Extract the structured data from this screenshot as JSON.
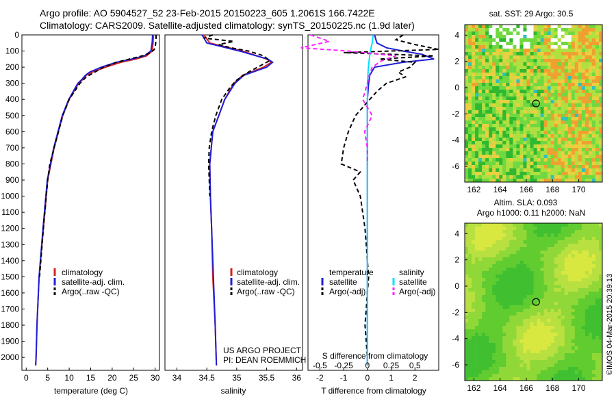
{
  "header": {
    "title_line1": "Argo profile: AO 5904527_52 23-Feb-2015 20150223_605 1.2061S 166.7422E",
    "title_line2": "Climatology: CARS2009. Satellite-adjusted climatology: synTS_20150225.nc (1.9d later)"
  },
  "colors": {
    "climatology": "#d62020",
    "satellite": "#1f1fd8",
    "argo": "#000000",
    "salinity_sat": "#00e0ff",
    "salinity_argo": "#ff22ff"
  },
  "chart_data": [
    {
      "type": "line",
      "panel": "temperature",
      "xlabel": "temperature (deg C)",
      "ylabel": "",
      "xlim": [
        -1,
        31
      ],
      "ylim": [
        2080,
        0
      ],
      "xticks": [
        0,
        5,
        10,
        15,
        20,
        25,
        30
      ],
      "yticks": [
        0,
        100,
        200,
        300,
        400,
        500,
        600,
        700,
        800,
        900,
        1000,
        1100,
        1200,
        1300,
        1400,
        1500,
        1600,
        1700,
        1800,
        1900,
        2000
      ],
      "legend": [
        "climatology",
        "satellite-adj. clim.",
        "Argo(..raw -QC)"
      ],
      "legend_placement": "lower-middle",
      "series": [
        {
          "name": "climatology",
          "depth": [
            0,
            50,
            100,
            130,
            150,
            170,
            200,
            230,
            250,
            280,
            300,
            400,
            500,
            700,
            900,
            1200,
            1500,
            1800,
            2000,
            2050
          ],
          "values": [
            29.6,
            29.5,
            29.3,
            28.0,
            25.5,
            22.0,
            18.5,
            15.5,
            14.0,
            13.0,
            12.2,
            10.0,
            8.5,
            6.5,
            5.0,
            4.0,
            3.0,
            2.5,
            2.3,
            2.2
          ]
        },
        {
          "name": "satellite-adj. clim.",
          "depth": [
            0,
            50,
            100,
            130,
            150,
            170,
            200,
            230,
            250,
            280,
            300,
            400,
            500,
            700,
            900,
            1200,
            1500,
            1800,
            2000,
            2050
          ],
          "values": [
            29.4,
            29.3,
            29.0,
            27.5,
            24.5,
            21.0,
            17.5,
            14.8,
            13.8,
            12.8,
            12.0,
            9.9,
            8.4,
            6.4,
            4.9,
            3.9,
            3.0,
            2.5,
            2.3,
            2.2
          ]
        },
        {
          "name": "Argo(..raw -QC)",
          "depth": [
            0,
            20,
            60,
            90,
            110,
            130,
            150,
            170,
            200,
            230,
            260,
            300,
            400,
            500,
            700,
            800,
            900,
            1200,
            1500
          ],
          "values": [
            30.2,
            30.2,
            30.1,
            29.8,
            29.0,
            27.0,
            24.0,
            21.0,
            18.0,
            16.0,
            14.0,
            12.5,
            10.0,
            8.5,
            6.5,
            5.5,
            5.0,
            4.0,
            3.1
          ]
        }
      ]
    },
    {
      "type": "line",
      "panel": "salinity",
      "xlabel": "salinity",
      "ylabel": "",
      "xlim": [
        33.8,
        36.1
      ],
      "ylim": [
        2080,
        0
      ],
      "xticks": [
        34,
        34.5,
        35,
        35.5,
        36
      ],
      "legend": [
        "climatology",
        "satellite-adj. clim.",
        "Argo(..raw -QC)"
      ],
      "legend_placement": "lower-middle",
      "annotations": [
        "US ARGO PROJECT",
        "PI: DEAN ROEMMICH"
      ],
      "series": [
        {
          "name": "climatology",
          "depth": [
            0,
            50,
            100,
            150,
            170,
            200,
            250,
            300,
            400,
            500,
            600,
            800,
            1000,
            1200,
            1500,
            1800,
            2050
          ],
          "values": [
            34.45,
            34.55,
            35.1,
            35.5,
            35.58,
            35.45,
            35.1,
            34.95,
            34.8,
            34.7,
            34.6,
            34.55,
            34.56,
            34.58,
            34.6,
            34.64,
            34.66
          ]
        },
        {
          "name": "satellite-adj. clim.",
          "depth": [
            0,
            50,
            100,
            150,
            170,
            200,
            250,
            300,
            400,
            500,
            600,
            800,
            1000,
            1200,
            1500,
            1800,
            2050
          ],
          "values": [
            34.42,
            34.5,
            35.05,
            35.52,
            35.6,
            35.5,
            35.12,
            34.97,
            34.8,
            34.7,
            34.6,
            34.55,
            34.56,
            34.58,
            34.61,
            34.64,
            34.66
          ]
        },
        {
          "name": "Argo(..raw -QC)",
          "depth": [
            0,
            20,
            40,
            60,
            80,
            100,
            130,
            160,
            200,
            240,
            280,
            320,
            400,
            500,
            600,
            700,
            800,
            900,
            1000
          ],
          "values": [
            34.6,
            34.45,
            34.95,
            34.7,
            34.9,
            35.2,
            35.45,
            35.55,
            35.35,
            35.15,
            35.0,
            34.9,
            34.75,
            34.65,
            34.58,
            34.54,
            34.53,
            34.54,
            34.55
          ]
        }
      ]
    },
    {
      "type": "line",
      "panel": "difference",
      "xlabel": "T difference from climatology",
      "xlabel_top": "S difference from climatology",
      "xlim": [
        -2.5,
        3
      ],
      "ylim": [
        2080,
        0
      ],
      "xticks": [
        -2,
        -1,
        0,
        1,
        2
      ],
      "xticks_salinity": [
        -0.5,
        -0.25,
        0,
        0.25,
        0.5
      ],
      "legend_titles": [
        "temperature",
        "salinity"
      ],
      "legend": [
        "satellite",
        "Argo(-adj)",
        "satellite",
        "Argo(-adj)"
      ],
      "legend_placement": "lower-middle",
      "series": [
        {
          "name": "satellite",
          "depth": [
            0,
            50,
            80,
            100,
            120,
            150,
            170,
            200,
            250,
            300,
            400,
            500,
            600,
            800,
            1000,
            1500,
            2000,
            2050
          ],
          "values": [
            0.3,
            0.4,
            0.8,
            1.5,
            2.3,
            2.8,
            1.5,
            0.3,
            0.1,
            0.05,
            0,
            0,
            0,
            0,
            0,
            0,
            0,
            0
          ]
        },
        {
          "name": "Argo(-adj)",
          "depth": [
            0,
            30,
            60,
            90,
            110,
            130,
            150,
            170,
            200,
            230,
            260,
            300,
            350,
            400,
            500,
            600,
            700,
            800,
            850,
            900,
            1000,
            1200,
            1500,
            1800,
            2000
          ],
          "values": [
            1.5,
            1.2,
            2.0,
            3.0,
            -1.0,
            2.8,
            0.5,
            2.0,
            1.8,
            1.3,
            1.6,
            0.8,
            0.4,
            0.1,
            -0.5,
            -0.8,
            -1.0,
            -1.1,
            -0.3,
            -0.6,
            -0.3,
            -0.1,
            0.05,
            -0.1,
            0
          ]
        },
        {
          "name": "satellite",
          "depth": [
            0,
            50,
            100,
            150,
            200,
            300,
            400,
            600,
            800,
            1000,
            1500,
            2000,
            2050
          ],
          "values": [
            0.06,
            0.05,
            0.03,
            0.02,
            0.01,
            0,
            0,
            0,
            0,
            0,
            0,
            0,
            0
          ]
        },
        {
          "name": "Argo(-adj)",
          "depth": [
            0,
            40,
            80,
            100,
            130,
            160,
            200,
            250,
            300,
            400,
            500,
            600,
            700,
            800
          ],
          "values": [
            -0.6,
            -0.4,
            -0.7,
            -0.2,
            0.3,
            0.15,
            0.05,
            0.02,
            0,
            -0.05,
            0.05,
            -0.03,
            0,
            0
          ]
        }
      ]
    },
    {
      "type": "heatmap",
      "panel": "sst",
      "title": "sat. SST: 29 Argo: 30.5",
      "xticks": [
        162,
        164,
        166,
        168,
        170
      ],
      "yticks": [
        4,
        2,
        0,
        -2,
        -4,
        -6
      ],
      "xlim": [
        161.3,
        171.8
      ],
      "ylim": [
        -7.2,
        4.8
      ],
      "marker": [
        166.7422,
        -1.2061
      ]
    },
    {
      "type": "heatmap",
      "panel": "sla",
      "title": "Altim. SLA: 0.093",
      "subtitle": "Argo h1000: 0.11 h2000: NaN",
      "xticks": [
        162,
        164,
        166,
        168,
        170
      ],
      "yticks": [
        4,
        2,
        0,
        -2,
        -4,
        -6
      ],
      "xlim": [
        161.3,
        171.8
      ],
      "ylim": [
        -7.2,
        4.8
      ],
      "marker": [
        166.7422,
        -1.2061
      ]
    }
  ],
  "credit": "©IMOS 04-Mar-2015 20:39:13"
}
